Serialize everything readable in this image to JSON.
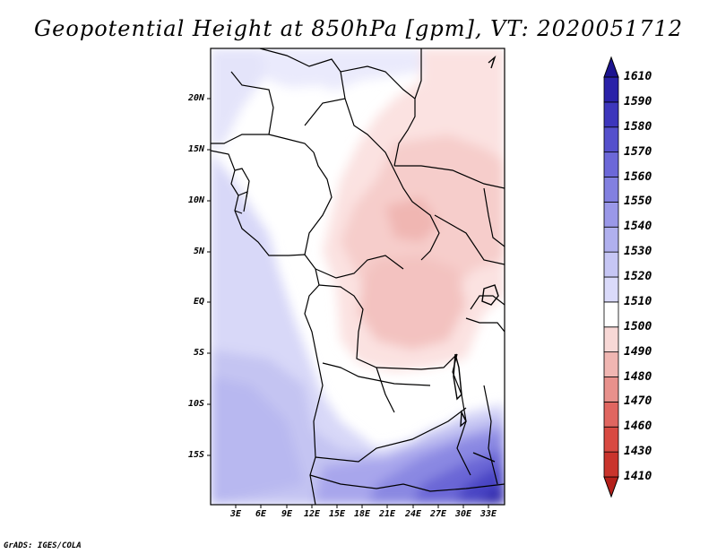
{
  "title": "Geopotential Height at 850hPa [gpm], VT: 2020051712",
  "credit": "GrADS: IGES/COLA",
  "lat_labels": [
    "20N",
    "15N",
    "10N",
    "5N",
    "EQ",
    "5S",
    "10S",
    "15S"
  ],
  "lon_labels": [
    "3E",
    "6E",
    "9E",
    "12E",
    "15E",
    "18E",
    "21E",
    "24E",
    "27E",
    "30E",
    "33E"
  ],
  "map": {
    "lon_range": [
      0,
      35
    ],
    "lat_range": [
      -20,
      24.5
    ],
    "region": "Central Africa",
    "field": "850 hPa geopotential height (gpm)"
  },
  "colorbar": {
    "levels": [
      "1410",
      "1430",
      "1460",
      "1470",
      "1480",
      "1490",
      "1500",
      "1510",
      "1520",
      "1530",
      "1540",
      "1550",
      "1560",
      "1570",
      "1580",
      "1590",
      "1610"
    ],
    "colors": [
      "#b4201a",
      "#c9342c",
      "#d84a42",
      "#e06660",
      "#e8918c",
      "#f0b6b2",
      "#f8d8d6",
      "#ffffff",
      "#dadafa",
      "#c6c6f4",
      "#b0b0ee",
      "#9a98e8",
      "#8280e0",
      "#6c68d8",
      "#5550cc",
      "#3d36bc",
      "#2a22a8",
      "#1c1490"
    ]
  }
}
